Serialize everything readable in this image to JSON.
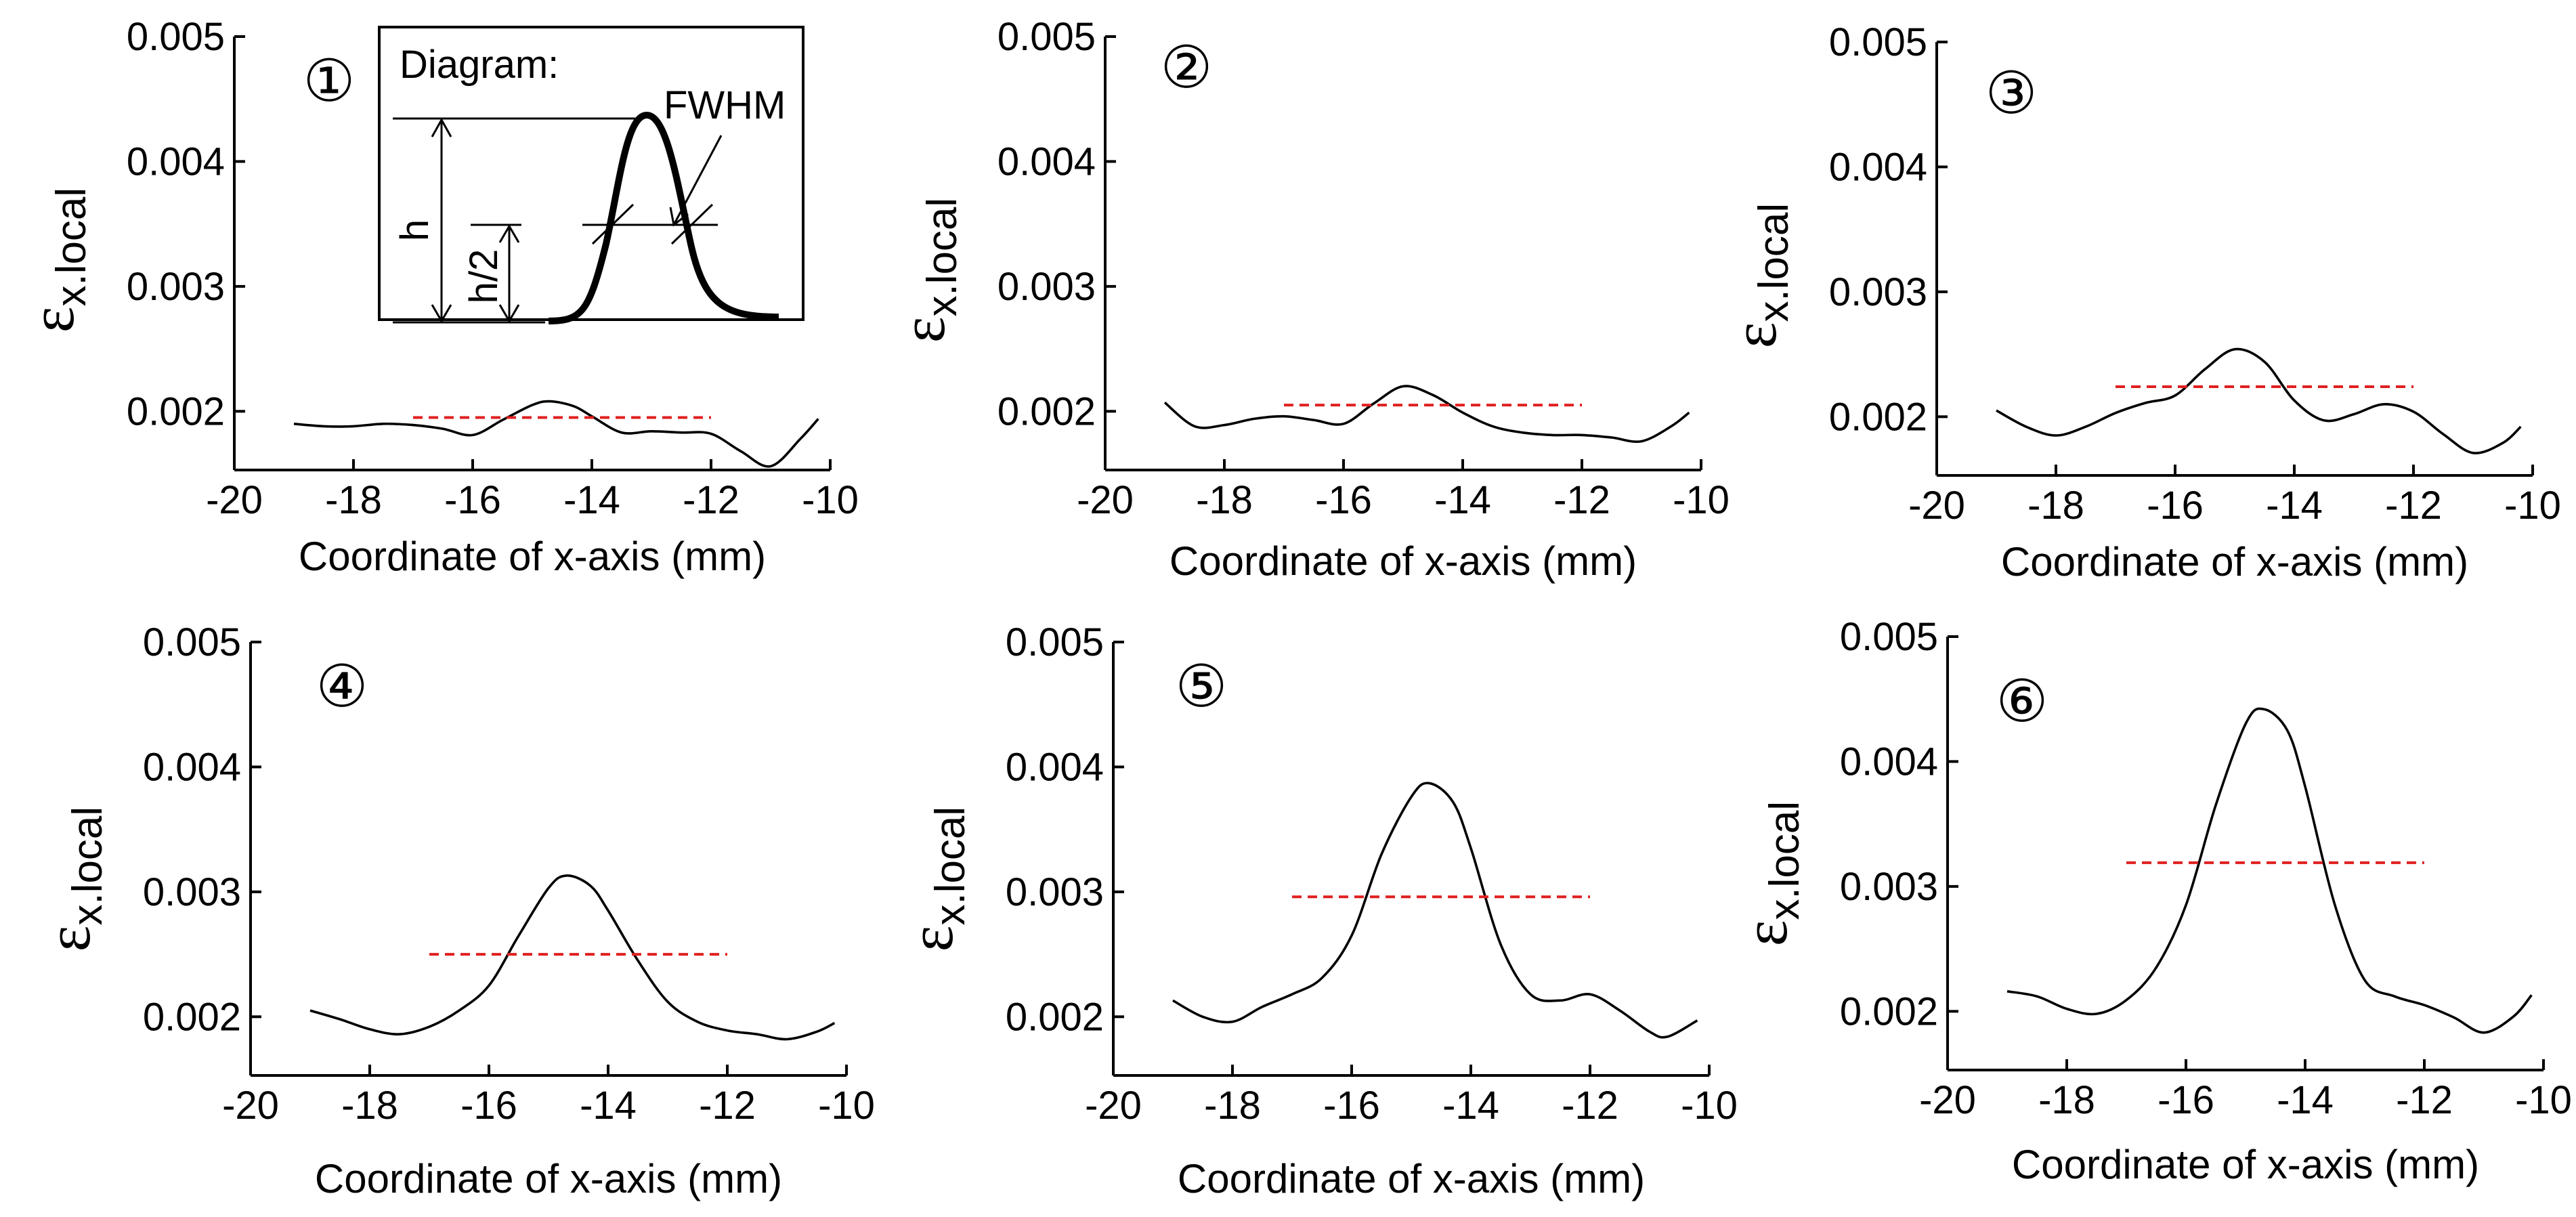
{
  "chart_data": [
    {
      "type": "line",
      "panel_label": "①",
      "xlabel": "Coordinate of x-axis (mm)",
      "ylabel": "ε",
      "ylabel_subscript": "x.local",
      "xlim": [
        -20,
        -10
      ],
      "ylim": [
        0.00153,
        0.005
      ],
      "x_ticks": [
        "-20",
        "-18",
        "-16",
        "-14",
        "-12",
        "-10"
      ],
      "y_ticks": [
        "0.002",
        "0.003",
        "0.004",
        "0.005"
      ],
      "series": [
        {
          "name": "strain",
          "x": [
            -19,
            -18.5,
            -18,
            -17.5,
            -17,
            -16.5,
            -16,
            -15.5,
            -15,
            -14.7,
            -14.3,
            -14,
            -13.5,
            -13,
            -12.5,
            -12,
            -11.5,
            -11,
            -10.5,
            -10.2
          ],
          "y": [
            0.0019,
            0.00188,
            0.00188,
            0.0019,
            0.00189,
            0.00186,
            0.00181,
            0.00193,
            0.00205,
            0.00208,
            0.00204,
            0.00196,
            0.00183,
            0.00184,
            0.00183,
            0.00182,
            0.00168,
            0.00156,
            0.00178,
            0.00194
          ]
        },
        {
          "name": "half-height level",
          "style": "dashed-red",
          "x": [
            -17,
            -12
          ],
          "y": [
            0.00195,
            0.00195
          ]
        }
      ]
    },
    {
      "type": "line",
      "panel_label": "②",
      "xlabel": "Coordinate of x-axis (mm)",
      "ylabel": "ε",
      "ylabel_subscript": "x.local",
      "xlim": [
        -20,
        -10
      ],
      "ylim": [
        0.00153,
        0.005
      ],
      "x_ticks": [
        "-20",
        "-18",
        "-16",
        "-14",
        "-12",
        "-10"
      ],
      "y_ticks": [
        "0.002",
        "0.003",
        "0.004",
        "0.005"
      ],
      "series": [
        {
          "name": "strain",
          "x": [
            -19,
            -18.5,
            -18,
            -17.5,
            -17,
            -16.5,
            -16,
            -15.5,
            -15,
            -14.5,
            -14,
            -13.5,
            -13,
            -12.5,
            -12,
            -11.5,
            -11,
            -10.5,
            -10.2
          ],
          "y": [
            0.00207,
            0.00188,
            0.00189,
            0.00194,
            0.00196,
            0.00193,
            0.0019,
            0.00206,
            0.0022,
            0.00213,
            0.00199,
            0.00188,
            0.00183,
            0.00181,
            0.00181,
            0.00179,
            0.00176,
            0.00188,
            0.00199
          ]
        },
        {
          "name": "half-height level",
          "style": "dashed-red",
          "x": [
            -17,
            -12
          ],
          "y": [
            0.00205,
            0.00205
          ]
        }
      ]
    },
    {
      "type": "line",
      "panel_label": "③",
      "xlabel": "Coordinate of x-axis (mm)",
      "ylabel": "ε",
      "ylabel_subscript": "x.local",
      "xlim": [
        -20,
        -10
      ],
      "ylim": [
        0.00153,
        0.005
      ],
      "x_ticks": [
        "-20",
        "-18",
        "-16",
        "-14",
        "-12",
        "-10"
      ],
      "y_ticks": [
        "0.002",
        "0.003",
        "0.004",
        "0.005"
      ],
      "series": [
        {
          "name": "strain",
          "x": [
            -19,
            -18.5,
            -18,
            -17.5,
            -17,
            -16.5,
            -16,
            -15.5,
            -15,
            -14.5,
            -14,
            -13.5,
            -13,
            -12.5,
            -12,
            -11.5,
            -11,
            -10.5,
            -10.2
          ],
          "y": [
            0.00205,
            0.00192,
            0.00185,
            0.00192,
            0.00203,
            0.00211,
            0.00217,
            0.00238,
            0.00254,
            0.00244,
            0.00213,
            0.00197,
            0.00202,
            0.0021,
            0.00204,
            0.00186,
            0.00171,
            0.00179,
            0.00192
          ]
        },
        {
          "name": "half-height level",
          "style": "dashed-red",
          "x": [
            -17,
            -12
          ],
          "y": [
            0.00224,
            0.00224
          ]
        }
      ]
    },
    {
      "type": "line",
      "panel_label": "④",
      "xlabel": "Coordinate of x-axis (mm)",
      "ylabel": "ε",
      "ylabel_subscript": "x.local",
      "xlim": [
        -20,
        -10
      ],
      "ylim": [
        0.00153,
        0.005
      ],
      "x_ticks": [
        "-20",
        "-18",
        "-16",
        "-14",
        "-12",
        "-10"
      ],
      "y_ticks": [
        "0.002",
        "0.003",
        "0.004",
        "0.005"
      ],
      "series": [
        {
          "name": "strain",
          "x": [
            -19,
            -18.5,
            -18,
            -17.5,
            -17,
            -16.5,
            -16,
            -15.5,
            -15,
            -14.7,
            -14.3,
            -14,
            -13.5,
            -13,
            -12.5,
            -12,
            -11.5,
            -11,
            -10.5,
            -10.2
          ],
          "y": [
            0.00205,
            0.00198,
            0.0019,
            0.00186,
            0.00192,
            0.00205,
            0.00225,
            0.00265,
            0.00303,
            0.00313,
            0.00305,
            0.00285,
            0.00245,
            0.00212,
            0.00196,
            0.00189,
            0.00186,
            0.00182,
            0.00188,
            0.00195
          ]
        },
        {
          "name": "half-height level",
          "style": "dashed-red",
          "x": [
            -17,
            -12
          ],
          "y": [
            0.0025,
            0.0025
          ]
        }
      ]
    },
    {
      "type": "line",
      "panel_label": "⑤",
      "xlabel": "Coordinate of x-axis (mm)",
      "ylabel": "ε",
      "ylabel_subscript": "x.local",
      "xlim": [
        -20,
        -10
      ],
      "ylim": [
        0.00153,
        0.005
      ],
      "x_ticks": [
        "-20",
        "-18",
        "-16",
        "-14",
        "-12",
        "-10"
      ],
      "y_ticks": [
        "0.002",
        "0.003",
        "0.004",
        "0.005"
      ],
      "series": [
        {
          "name": "strain",
          "x": [
            -19,
            -18.5,
            -18,
            -17.5,
            -17,
            -16.5,
            -16,
            -15.5,
            -15,
            -14.7,
            -14.3,
            -14,
            -13.5,
            -13,
            -12.5,
            -12,
            -11.5,
            -11,
            -10.7,
            -10.2
          ],
          "y": [
            0.00213,
            0.002,
            0.00196,
            0.00208,
            0.00218,
            0.00231,
            0.00265,
            0.0033,
            0.00376,
            0.00387,
            0.00372,
            0.00335,
            0.00258,
            0.00218,
            0.00213,
            0.00218,
            0.00205,
            0.00188,
            0.00184,
            0.00197
          ]
        },
        {
          "name": "half-height level",
          "style": "dashed-red",
          "x": [
            -17,
            -12
          ],
          "y": [
            0.00296,
            0.00296
          ]
        }
      ]
    },
    {
      "type": "line",
      "panel_label": "⑥",
      "xlabel": "Coordinate of x-axis (mm)",
      "ylabel": "ε",
      "ylabel_subscript": "x.local",
      "xlim": [
        -20,
        -10
      ],
      "ylim": [
        0.00153,
        0.005
      ],
      "x_ticks": [
        "-20",
        "-18",
        "-16",
        "-14",
        "-12",
        "-10"
      ],
      "y_ticks": [
        "0.002",
        "0.003",
        "0.004",
        "0.005"
      ],
      "series": [
        {
          "name": "strain",
          "x": [
            -19,
            -18.5,
            -18,
            -17.5,
            -17,
            -16.5,
            -16,
            -15.5,
            -15,
            -14.7,
            -14.3,
            -14,
            -13.5,
            -13,
            -12.5,
            -12,
            -11.5,
            -11,
            -10.5,
            -10.2
          ],
          "y": [
            0.00216,
            0.00212,
            0.00202,
            0.00198,
            0.00209,
            0.00235,
            0.00285,
            0.00365,
            0.0043,
            0.00442,
            0.00425,
            0.0038,
            0.00285,
            0.00225,
            0.00212,
            0.00205,
            0.00195,
            0.00183,
            0.00196,
            0.00213
          ]
        },
        {
          "name": "half-height level",
          "style": "dashed-red",
          "x": [
            -17,
            -12
          ],
          "y": [
            0.00319,
            0.00319
          ]
        }
      ]
    }
  ],
  "inset_diagram": {
    "title": "Diagram:",
    "peak_label": "FWHM",
    "height_label": "h",
    "half_height_label": "h/2"
  },
  "colors": {
    "curve": "#000000",
    "fwhm_dashed": "#e02020",
    "background": "#ffffff"
  }
}
